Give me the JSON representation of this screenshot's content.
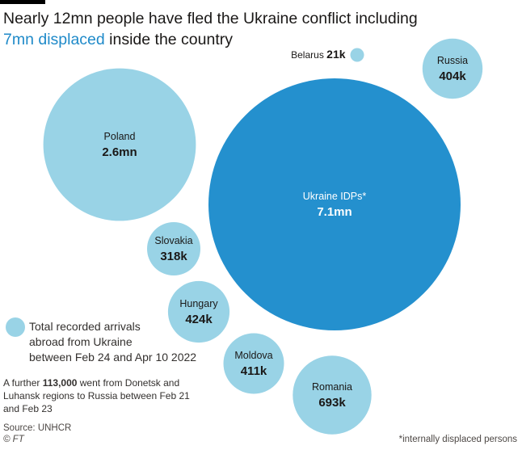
{
  "header": {
    "title_line1": "Nearly 12mn people have fled the Ukraine conflict including",
    "title_highlight": "7mn displaced",
    "title_rest": " inside the country"
  },
  "chart_data": {
    "type": "bubble",
    "title": "Nearly 12mn people have fled the Ukraine conflict including 7mn displaced inside the country",
    "unit": "people",
    "bubbles": [
      {
        "name": "Ukraine IDPs*",
        "value": 7100000,
        "label": "7.1mn",
        "category": "internal",
        "color": "#2490ce"
      },
      {
        "name": "Poland",
        "value": 2600000,
        "label": "2.6mn",
        "category": "abroad",
        "color": "#99d3e6"
      },
      {
        "name": "Romania",
        "value": 693000,
        "label": "693k",
        "category": "abroad",
        "color": "#99d3e6"
      },
      {
        "name": "Hungary",
        "value": 424000,
        "label": "424k",
        "category": "abroad",
        "color": "#99d3e6"
      },
      {
        "name": "Moldova",
        "value": 411000,
        "label": "411k",
        "category": "abroad",
        "color": "#99d3e6"
      },
      {
        "name": "Russia",
        "value": 404000,
        "label": "404k",
        "category": "abroad",
        "color": "#99d3e6"
      },
      {
        "name": "Slovakia",
        "value": 318000,
        "label": "318k",
        "category": "abroad",
        "color": "#99d3e6"
      },
      {
        "name": "Belarus",
        "value": 21000,
        "label": "21k",
        "category": "abroad",
        "color": "#99d3e6"
      }
    ],
    "legend": {
      "label": "Total recorded arrivals abroad from Ukraine between Feb 24 and Apr 10 2022",
      "lines": [
        "Total recorded arrivals",
        "abroad from Ukraine",
        "between Feb 24 and Apr 10 2022"
      ],
      "color": "#99d3e6"
    }
  },
  "footnote": {
    "prefix": "A further ",
    "bold": "113,000",
    "suffix": " went from Donetsk and Luhansk regions to Russia between Feb 21 and Feb 23"
  },
  "source": "Source: UNHCR",
  "credit": "© FT",
  "idp_note": "*internally displaced persons"
}
